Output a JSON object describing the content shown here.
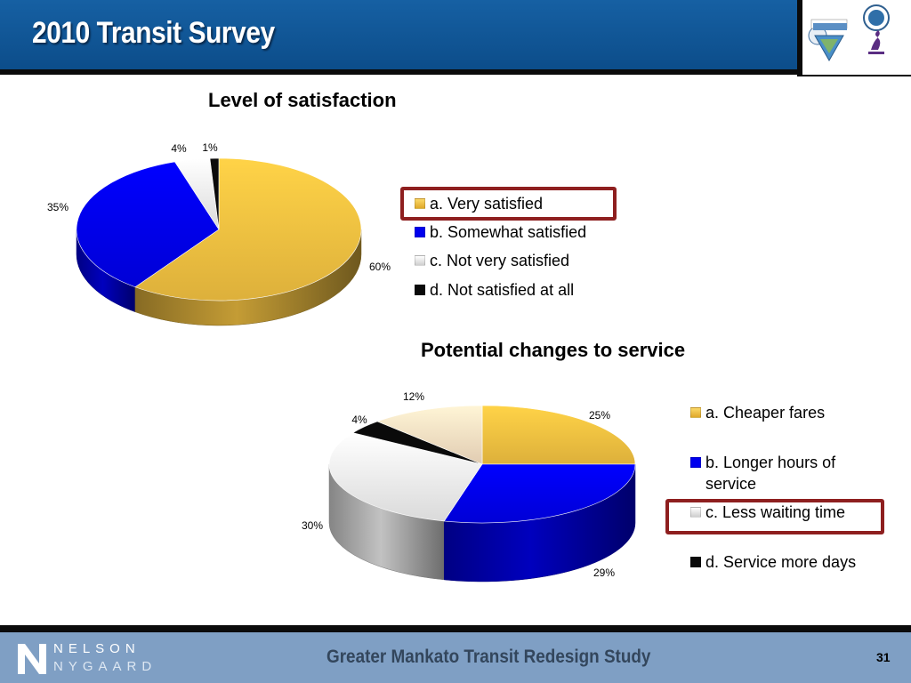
{
  "header": {
    "title": "2010 Transit Survey"
  },
  "footer": {
    "study_name": "Greater Mankato Transit Redesign Study",
    "page_number": "31",
    "logo_line1": "NELSON",
    "logo_line2": "NYGAARD"
  },
  "colors": {
    "header_blue": "#0f5696",
    "footer_blue": "#7f9fc4",
    "highlight": "#8e1f1f",
    "gold": "#f5c342",
    "blue": "#0000ee",
    "white_gray": "#f2f2f2",
    "black": "#0a0a0a",
    "peach": "#fae3c6"
  },
  "chart_data": [
    {
      "type": "pie",
      "title": "Level of satisfaction",
      "categories": [
        "a. Very satisfied",
        "b. Somewhat satisfied",
        "c. Not very satisfied",
        "d. Not satisfied at all"
      ],
      "values": [
        60,
        35,
        4,
        1
      ],
      "data_labels": [
        "60%",
        "35%",
        "4%",
        "1%"
      ],
      "colors": [
        "#f5c342",
        "#0000ee",
        "#f2f2f2",
        "#0a0a0a"
      ],
      "highlighted": "a. Very satisfied",
      "legend_placement": "right"
    },
    {
      "type": "pie",
      "title": "Potential changes to service",
      "categories": [
        "a. Cheaper fares",
        "b. Longer hours of service",
        "c. Less waiting time",
        "d. Service more days",
        ""
      ],
      "values": [
        25,
        29,
        30,
        4,
        12
      ],
      "data_labels": [
        "25%",
        "29%",
        "30%",
        "4%",
        "12%"
      ],
      "colors": [
        "#f5c342",
        "#0000ee",
        "#f2f2f2",
        "#0a0a0a",
        "#fae3c6"
      ],
      "highlighted": "c. Less waiting time",
      "legend_placement": "right"
    }
  ]
}
